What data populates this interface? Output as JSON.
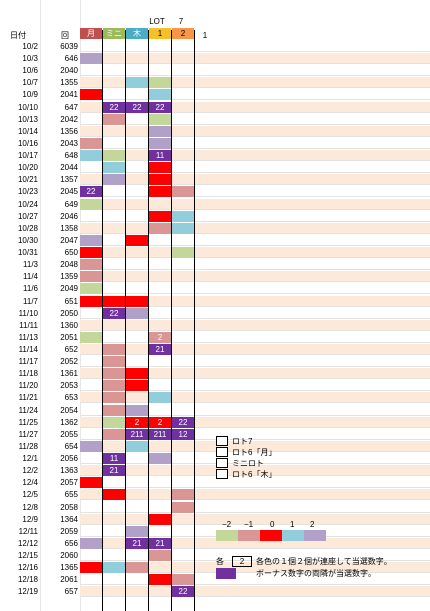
{
  "header": {
    "date_col": "日付",
    "round_col": "回",
    "lot_label": "LOT",
    "seven_label": "7",
    "col_labels": [
      "月",
      "ミニ",
      "木",
      "1",
      "2",
      "1"
    ]
  },
  "colors": {
    "red": "#ff0000",
    "pink": "#da9694",
    "green": "#c4d79b",
    "blue": "#92cddc",
    "purple": "#b1a0c7",
    "dark_purple": "#7030a0",
    "peach_row": "#fde9d9",
    "header_getsu": "#c0504d",
    "header_mini": "#9bbb59",
    "header_moku": "#4bacc6",
    "header_lot1": "#f7c028",
    "header_lot2": "#f79646"
  },
  "rows": [
    {
      "date": "10/2",
      "num": "6039",
      "cells": [
        "",
        "",
        "",
        "",
        ""
      ]
    },
    {
      "date": "10/3",
      "num": "646",
      "cells": [
        "U",
        "",
        "",
        "",
        ""
      ]
    },
    {
      "date": "10/6",
      "num": "2040",
      "cells": [
        "",
        "K",
        "",
        "",
        ""
      ]
    },
    {
      "date": "10/7",
      "num": "1355",
      "cells": [
        "",
        "",
        "B",
        "G",
        ""
      ]
    },
    {
      "date": "10/9",
      "num": "2041",
      "cells": [
        "R",
        "",
        "",
        "B",
        ""
      ]
    },
    {
      "date": "10/10",
      "num": "647",
      "cells": [
        "",
        "D:22",
        "D:22",
        "D:22",
        ""
      ]
    },
    {
      "date": "10/13",
      "num": "2042",
      "cells": [
        "",
        "P",
        "",
        "G",
        ""
      ]
    },
    {
      "date": "10/14",
      "num": "1356",
      "cells": [
        "",
        "",
        "",
        "U",
        ""
      ]
    },
    {
      "date": "10/16",
      "num": "2043",
      "cells": [
        "P",
        "",
        "",
        "U",
        ""
      ]
    },
    {
      "date": "10/17",
      "num": "648",
      "cells": [
        "B",
        "G",
        "",
        "D:11",
        ""
      ]
    },
    {
      "date": "10/20",
      "num": "2044",
      "cells": [
        "",
        "B",
        "",
        "R",
        ""
      ]
    },
    {
      "date": "10/21",
      "num": "1357",
      "cells": [
        "",
        "U",
        "",
        "R",
        ""
      ]
    },
    {
      "date": "10/23",
      "num": "2045",
      "cells": [
        "D:22",
        "",
        "",
        "R",
        "P"
      ]
    },
    {
      "date": "10/24",
      "num": "649",
      "cells": [
        "G",
        "",
        "",
        "",
        ""
      ]
    },
    {
      "date": "10/27",
      "num": "2046",
      "cells": [
        "",
        "",
        "",
        "R",
        "B"
      ]
    },
    {
      "date": "10/28",
      "num": "1358",
      "cells": [
        "",
        "",
        "",
        "P",
        "B"
      ]
    },
    {
      "date": "10/30",
      "num": "2047",
      "cells": [
        "U",
        "",
        "R",
        "",
        ""
      ]
    },
    {
      "date": "10/31",
      "num": "650",
      "cells": [
        "R",
        "",
        "",
        "",
        "G"
      ]
    },
    {
      "date": "11/3",
      "num": "2048",
      "cells": [
        "P",
        "",
        "",
        "",
        ""
      ]
    },
    {
      "date": "11/4",
      "num": "1359",
      "cells": [
        "P",
        "",
        "",
        "",
        ""
      ]
    },
    {
      "date": "11/6",
      "num": "2049",
      "cells": [
        "G",
        "",
        "",
        "",
        ""
      ]
    },
    {
      "date": "11/7",
      "num": "651",
      "cells": [
        "R",
        "R",
        "R",
        "",
        ""
      ]
    },
    {
      "date": "11/10",
      "num": "2050",
      "cells": [
        "",
        "D:22",
        "U",
        "",
        ""
      ]
    },
    {
      "date": "11/11",
      "num": "1360",
      "cells": [
        "",
        "",
        "",
        "",
        ""
      ]
    },
    {
      "date": "11/13",
      "num": "2051",
      "cells": [
        "G",
        "",
        "",
        "P:2",
        ""
      ]
    },
    {
      "date": "11/14",
      "num": "652",
      "cells": [
        "",
        "P",
        "",
        "D:21",
        ""
      ]
    },
    {
      "date": "11/17",
      "num": "2052",
      "cells": [
        "",
        "P",
        "",
        "",
        ""
      ]
    },
    {
      "date": "11/18",
      "num": "1361",
      "cells": [
        "",
        "P",
        "R",
        "",
        ""
      ]
    },
    {
      "date": "11/20",
      "num": "2053",
      "cells": [
        "",
        "P",
        "R",
        "",
        ""
      ]
    },
    {
      "date": "11/21",
      "num": "653",
      "cells": [
        "",
        "P",
        "",
        "B",
        ""
      ]
    },
    {
      "date": "11/24",
      "num": "2054",
      "cells": [
        "",
        "P",
        "U",
        "",
        ""
      ]
    },
    {
      "date": "11/25",
      "num": "1362",
      "cells": [
        "",
        "G",
        "R:2",
        "R:2",
        "D:22"
      ]
    },
    {
      "date": "11/27",
      "num": "2055",
      "cells": [
        "",
        "P",
        "D:211",
        "D:211",
        "D:12"
      ]
    },
    {
      "date": "11/28",
      "num": "654",
      "cells": [
        "U",
        "",
        "B",
        "",
        ""
      ]
    },
    {
      "date": "12/1",
      "num": "2056",
      "cells": [
        "",
        "D:11",
        "",
        "U",
        ""
      ]
    },
    {
      "date": "12/2",
      "num": "1363",
      "cells": [
        "",
        "D:21",
        "",
        "",
        ""
      ]
    },
    {
      "date": "12/4",
      "num": "2057",
      "cells": [
        "R",
        "",
        "",
        "",
        ""
      ]
    },
    {
      "date": "12/5",
      "num": "655",
      "cells": [
        "",
        "R",
        "",
        "",
        "P"
      ]
    },
    {
      "date": "12/8",
      "num": "2058",
      "cells": [
        "",
        "",
        "",
        "",
        "P"
      ]
    },
    {
      "date": "12/9",
      "num": "1364",
      "cells": [
        "",
        "",
        "",
        "R",
        ""
      ]
    },
    {
      "date": "12/11",
      "num": "2059",
      "cells": [
        "",
        "",
        "U",
        "",
        ""
      ]
    },
    {
      "date": "12/12",
      "num": "656",
      "cells": [
        "U",
        "",
        "D:21",
        "D:21",
        ""
      ]
    },
    {
      "date": "12/15",
      "num": "2060",
      "cells": [
        "",
        "",
        "",
        "P",
        ""
      ]
    },
    {
      "date": "12/16",
      "num": "1365",
      "cells": [
        "R",
        "B",
        "P",
        "",
        ""
      ]
    },
    {
      "date": "12/18",
      "num": "2061",
      "cells": [
        "",
        "",
        "",
        "R",
        "P"
      ]
    },
    {
      "date": "12/19",
      "num": "657",
      "cells": [
        "",
        "",
        "",
        "",
        "D:22"
      ]
    }
  ],
  "legend": {
    "items": [
      "ロト7",
      "ロト6「月」",
      "ミニロト",
      "ロト6「木」"
    ],
    "scale": [
      "−2",
      "−1",
      "0",
      "1",
      "2"
    ],
    "note_prefix": "各",
    "note_value": "2",
    "note_text": "各色の１個２個が連座して当選数字。",
    "note_bonus": "ボーナス数字の両隣が当選数字。"
  }
}
